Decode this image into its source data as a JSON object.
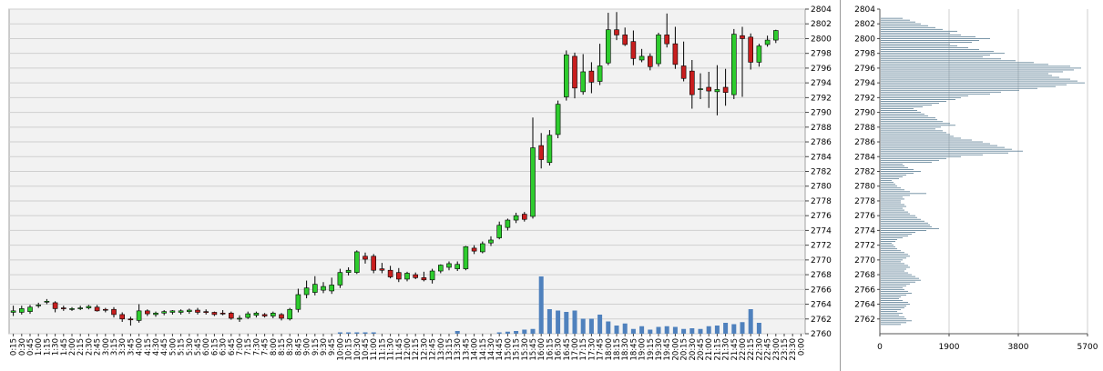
{
  "chart_data": [
    {
      "type": "candlestick",
      "title": "",
      "xlabel": "",
      "ylabel": "",
      "grid": true,
      "y_axis_position": "right",
      "ylim": [
        2760,
        2804
      ],
      "y_ticks": [
        2760,
        2762,
        2764,
        2766,
        2768,
        2770,
        2772,
        2774,
        2776,
        2778,
        2780,
        2782,
        2784,
        2786,
        2788,
        2790,
        2792,
        2794,
        2796,
        2798,
        2800,
        2802,
        2804
      ],
      "x_tick_labels": [
        "0:15",
        "0:30",
        "0:45",
        "1:00",
        "1:15",
        "1:30",
        "1:45",
        "2:00",
        "2:15",
        "2:30",
        "2:45",
        "3:00",
        "3:15",
        "3:30",
        "3:45",
        "4:00",
        "4:15",
        "4:30",
        "4:45",
        "5:00",
        "5:15",
        "5:30",
        "5:45",
        "6:00",
        "6:15",
        "6:30",
        "6:45",
        "7:00",
        "7:15",
        "7:30",
        "7:45",
        "8:00",
        "8:15",
        "8:30",
        "8:45",
        "9:00",
        "9:15",
        "9:30",
        "9:45",
        "10:00",
        "10:15",
        "10:30",
        "10:45",
        "11:00",
        "11:15",
        "11:30",
        "11:45",
        "12:00",
        "12:15",
        "12:30",
        "12:45",
        "13:00",
        "13:15",
        "13:30",
        "13:45",
        "14:00",
        "14:15",
        "14:30",
        "14:45",
        "15:00",
        "15:15",
        "15:30",
        "15:45",
        "16:00",
        "16:15",
        "16:30",
        "16:45",
        "17:00",
        "17:15",
        "17:30",
        "17:45",
        "18:00",
        "18:15",
        "18:30",
        "18:45",
        "19:00",
        "19:15",
        "19:30",
        "19:45",
        "20:00",
        "20:15",
        "20:30",
        "20:45",
        "21:00",
        "21:15",
        "21:30",
        "21:45",
        "22:00",
        "22:15",
        "22:30",
        "22:45",
        "23:00",
        "23:15",
        "23:30",
        "0:00"
      ],
      "colors": {
        "up": "#2ecc2e",
        "down": "#c81e1e",
        "volume": "#4f81bd",
        "grid": "#cfcfcf",
        "plot_bg": "#f2f2f2"
      },
      "candles": [
        {
          "o": 2762.9,
          "h": 2763.8,
          "l": 2762.4,
          "c": 2763.1
        },
        {
          "o": 2762.9,
          "h": 2763.8,
          "l": 2762.6,
          "c": 2763.4
        },
        {
          "o": 2763.0,
          "h": 2763.9,
          "l": 2762.7,
          "c": 2763.6
        },
        {
          "o": 2763.8,
          "h": 2764.2,
          "l": 2763.5,
          "c": 2763.9
        },
        {
          "o": 2764.3,
          "h": 2764.7,
          "l": 2764.0,
          "c": 2764.4
        },
        {
          "o": 2764.2,
          "h": 2764.4,
          "l": 2762.9,
          "c": 2763.4
        },
        {
          "o": 2763.5,
          "h": 2763.8,
          "l": 2763.1,
          "c": 2763.4
        },
        {
          "o": 2763.3,
          "h": 2763.6,
          "l": 2763.1,
          "c": 2763.4
        },
        {
          "o": 2763.4,
          "h": 2763.8,
          "l": 2763.2,
          "c": 2763.5
        },
        {
          "o": 2763.5,
          "h": 2763.9,
          "l": 2763.3,
          "c": 2763.7
        },
        {
          "o": 2763.6,
          "h": 2763.9,
          "l": 2763.0,
          "c": 2763.1
        },
        {
          "o": 2763.3,
          "h": 2763.5,
          "l": 2762.9,
          "c": 2763.2
        },
        {
          "o": 2763.3,
          "h": 2763.6,
          "l": 2762.2,
          "c": 2762.6
        },
        {
          "o": 2762.6,
          "h": 2762.9,
          "l": 2761.6,
          "c": 2762.0
        },
        {
          "o": 2762.0,
          "h": 2762.3,
          "l": 2761.1,
          "c": 2761.9
        },
        {
          "o": 2761.8,
          "h": 2764.0,
          "l": 2761.5,
          "c": 2763.1
        },
        {
          "o": 2763.1,
          "h": 2763.3,
          "l": 2762.4,
          "c": 2762.7
        },
        {
          "o": 2762.6,
          "h": 2763.0,
          "l": 2762.3,
          "c": 2762.8
        },
        {
          "o": 2762.8,
          "h": 2763.2,
          "l": 2762.5,
          "c": 2763.0
        },
        {
          "o": 2762.9,
          "h": 2763.2,
          "l": 2762.6,
          "c": 2763.1
        },
        {
          "o": 2762.9,
          "h": 2763.3,
          "l": 2762.6,
          "c": 2763.1
        },
        {
          "o": 2763.0,
          "h": 2763.4,
          "l": 2762.7,
          "c": 2763.2
        },
        {
          "o": 2763.2,
          "h": 2763.5,
          "l": 2762.6,
          "c": 2762.9
        },
        {
          "o": 2763.0,
          "h": 2763.3,
          "l": 2762.6,
          "c": 2762.9
        },
        {
          "o": 2762.9,
          "h": 2763.0,
          "l": 2762.4,
          "c": 2762.6
        },
        {
          "o": 2762.8,
          "h": 2763.2,
          "l": 2762.5,
          "c": 2762.7
        },
        {
          "o": 2762.8,
          "h": 2763.0,
          "l": 2761.9,
          "c": 2762.1
        },
        {
          "o": 2762.0,
          "h": 2762.5,
          "l": 2761.6,
          "c": 2762.1
        },
        {
          "o": 2762.2,
          "h": 2763.0,
          "l": 2762.0,
          "c": 2762.7
        },
        {
          "o": 2762.5,
          "h": 2763.0,
          "l": 2762.2,
          "c": 2762.8
        },
        {
          "o": 2762.6,
          "h": 2762.8,
          "l": 2762.2,
          "c": 2762.4
        },
        {
          "o": 2762.4,
          "h": 2763.0,
          "l": 2762.1,
          "c": 2762.8
        },
        {
          "o": 2762.6,
          "h": 2762.8,
          "l": 2761.8,
          "c": 2762.1
        },
        {
          "o": 2762.0,
          "h": 2763.5,
          "l": 2761.8,
          "c": 2763.3
        },
        {
          "o": 2763.3,
          "h": 2766.1,
          "l": 2762.9,
          "c": 2765.3
        },
        {
          "o": 2765.3,
          "h": 2767.2,
          "l": 2764.8,
          "c": 2766.2
        },
        {
          "o": 2765.6,
          "h": 2767.8,
          "l": 2765.2,
          "c": 2766.7
        },
        {
          "o": 2765.9,
          "h": 2767.0,
          "l": 2765.5,
          "c": 2766.4
        },
        {
          "o": 2765.8,
          "h": 2767.6,
          "l": 2765.4,
          "c": 2766.6
        },
        {
          "o": 2766.6,
          "h": 2768.8,
          "l": 2766.2,
          "c": 2768.3
        },
        {
          "o": 2768.3,
          "h": 2769.0,
          "l": 2767.9,
          "c": 2768.6
        },
        {
          "o": 2768.3,
          "h": 2771.3,
          "l": 2768.1,
          "c": 2771.1
        },
        {
          "o": 2770.5,
          "h": 2771.0,
          "l": 2769.5,
          "c": 2770.1
        },
        {
          "o": 2770.5,
          "h": 2770.8,
          "l": 2768.2,
          "c": 2768.6
        },
        {
          "o": 2768.8,
          "h": 2769.6,
          "l": 2768.2,
          "c": 2768.6
        },
        {
          "o": 2768.6,
          "h": 2769.2,
          "l": 2767.5,
          "c": 2767.7
        },
        {
          "o": 2768.3,
          "h": 2768.9,
          "l": 2767.0,
          "c": 2767.4
        },
        {
          "o": 2767.4,
          "h": 2768.4,
          "l": 2767.1,
          "c": 2768.2
        },
        {
          "o": 2768.0,
          "h": 2768.3,
          "l": 2767.4,
          "c": 2767.6
        },
        {
          "o": 2767.6,
          "h": 2768.4,
          "l": 2767.1,
          "c": 2767.3
        },
        {
          "o": 2767.3,
          "h": 2768.8,
          "l": 2766.8,
          "c": 2768.5
        },
        {
          "o": 2768.5,
          "h": 2769.4,
          "l": 2768.2,
          "c": 2769.3
        },
        {
          "o": 2769.0,
          "h": 2769.8,
          "l": 2768.6,
          "c": 2769.5
        },
        {
          "o": 2768.8,
          "h": 2769.8,
          "l": 2768.5,
          "c": 2769.4
        },
        {
          "o": 2768.8,
          "h": 2771.9,
          "l": 2768.6,
          "c": 2771.8
        },
        {
          "o": 2771.6,
          "h": 2772.0,
          "l": 2770.8,
          "c": 2771.2
        },
        {
          "o": 2771.1,
          "h": 2772.5,
          "l": 2770.9,
          "c": 2772.2
        },
        {
          "o": 2772.3,
          "h": 2773.2,
          "l": 2771.9,
          "c": 2772.7
        },
        {
          "o": 2773.0,
          "h": 2775.2,
          "l": 2772.8,
          "c": 2774.7
        },
        {
          "o": 2774.4,
          "h": 2775.6,
          "l": 2774.0,
          "c": 2775.4
        },
        {
          "o": 2775.4,
          "h": 2776.4,
          "l": 2775.0,
          "c": 2776.0
        },
        {
          "o": 2776.2,
          "h": 2776.5,
          "l": 2775.2,
          "c": 2775.5
        },
        {
          "o": 2775.9,
          "h": 2789.3,
          "l": 2775.6,
          "c": 2785.2
        },
        {
          "o": 2785.5,
          "h": 2787.2,
          "l": 2782.4,
          "c": 2783.6
        },
        {
          "o": 2783.2,
          "h": 2787.6,
          "l": 2782.8,
          "c": 2786.9
        },
        {
          "o": 2787.0,
          "h": 2791.6,
          "l": 2786.5,
          "c": 2791.1
        },
        {
          "o": 2792.1,
          "h": 2798.4,
          "l": 2791.6,
          "c": 2797.8
        },
        {
          "o": 2797.6,
          "h": 2798.1,
          "l": 2791.9,
          "c": 2793.3
        },
        {
          "o": 2792.8,
          "h": 2797.9,
          "l": 2792.4,
          "c": 2795.5
        },
        {
          "o": 2795.6,
          "h": 2796.8,
          "l": 2792.6,
          "c": 2794.1
        },
        {
          "o": 2794.2,
          "h": 2799.3,
          "l": 2793.7,
          "c": 2796.3
        },
        {
          "o": 2796.7,
          "h": 2803.5,
          "l": 2796.4,
          "c": 2801.2
        },
        {
          "o": 2801.2,
          "h": 2803.6,
          "l": 2799.8,
          "c": 2800.5
        },
        {
          "o": 2800.5,
          "h": 2801.5,
          "l": 2799.0,
          "c": 2799.2
        },
        {
          "o": 2799.6,
          "h": 2801.1,
          "l": 2796.4,
          "c": 2797.3
        },
        {
          "o": 2797.1,
          "h": 2798.6,
          "l": 2796.8,
          "c": 2797.6
        },
        {
          "o": 2797.6,
          "h": 2798.0,
          "l": 2795.7,
          "c": 2796.2
        },
        {
          "o": 2796.6,
          "h": 2800.8,
          "l": 2796.2,
          "c": 2800.5
        },
        {
          "o": 2800.5,
          "h": 2803.4,
          "l": 2798.8,
          "c": 2799.3
        },
        {
          "o": 2799.3,
          "h": 2801.6,
          "l": 2795.9,
          "c": 2796.5
        },
        {
          "o": 2796.3,
          "h": 2799.6,
          "l": 2794.2,
          "c": 2794.6
        },
        {
          "o": 2795.6,
          "h": 2797.1,
          "l": 2790.5,
          "c": 2792.4
        },
        {
          "o": 2793.2,
          "h": 2795.3,
          "l": 2791.8,
          "c": 2793.2
        },
        {
          "o": 2793.4,
          "h": 2795.5,
          "l": 2790.6,
          "c": 2792.9
        },
        {
          "o": 2792.8,
          "h": 2796.4,
          "l": 2789.6,
          "c": 2793.1
        },
        {
          "o": 2793.4,
          "h": 2795.9,
          "l": 2790.9,
          "c": 2792.7
        },
        {
          "o": 2792.4,
          "h": 2801.3,
          "l": 2791.8,
          "c": 2800.6
        },
        {
          "o": 2800.4,
          "h": 2801.6,
          "l": 2792.1,
          "c": 2800.0
        },
        {
          "o": 2800.2,
          "h": 2800.7,
          "l": 2795.8,
          "c": 2796.8
        },
        {
          "o": 2796.8,
          "h": 2799.3,
          "l": 2796.2,
          "c": 2799.0
        },
        {
          "o": 2799.2,
          "h": 2800.4,
          "l": 2798.9,
          "c": 2799.8
        },
        {
          "o": 2799.8,
          "h": 2801.2,
          "l": 2799.4,
          "c": 2801.1
        }
      ],
      "volume": [
        0,
        0,
        0,
        0,
        0,
        0,
        0,
        0,
        0,
        0,
        0,
        0,
        0,
        0,
        0,
        0,
        0,
        0,
        0,
        0,
        0,
        0,
        0,
        0,
        0,
        0,
        0,
        0,
        0,
        0,
        0,
        0,
        0,
        0,
        0,
        0,
        0,
        0,
        0,
        0.1,
        0.1,
        0.1,
        0.1,
        0.1,
        0,
        0,
        0,
        0,
        0,
        0,
        0,
        0,
        0,
        0.2,
        0,
        0,
        0,
        0,
        0.1,
        0.15,
        0.2,
        0.3,
        0.35,
        4.2,
        1.8,
        1.7,
        1.6,
        1.7,
        1.1,
        1.1,
        1.4,
        0.9,
        0.6,
        0.75,
        0.35,
        0.55,
        0.3,
        0.5,
        0.55,
        0.5,
        0.35,
        0.4,
        0.35,
        0.55,
        0.6,
        0.8,
        0.7,
        0.85,
        1.8,
        0.8,
        0,
        0,
        0
      ]
    },
    {
      "type": "bar",
      "orientation": "horizontal",
      "title": "",
      "x_ticks": [
        0,
        1900,
        3800,
        5700
      ],
      "xlim": [
        0,
        5700
      ],
      "ylim": [
        2760,
        2804
      ],
      "y_ticks": [
        2762,
        2764,
        2766,
        2768,
        2770,
        2772,
        2774,
        2776,
        2778,
        2780,
        2782,
        2784,
        2786,
        2788,
        2790,
        2792,
        2794,
        2796,
        2798,
        2800,
        2802,
        2804
      ],
      "colors": {
        "bar": "#5a7d93",
        "grid": "#cfcfcf"
      },
      "levels": [
        2761.25,
        2761.5,
        2761.75,
        2762.0,
        2762.25,
        2762.5,
        2762.75,
        2763.0,
        2763.25,
        2763.5,
        2763.75,
        2764.0,
        2764.25,
        2764.5,
        2764.75,
        2765.0,
        2765.25,
        2765.5,
        2765.75,
        2766.0,
        2766.25,
        2766.5,
        2766.75,
        2767.0,
        2767.25,
        2767.5,
        2767.75,
        2768.0,
        2768.25,
        2768.5,
        2768.75,
        2769.0,
        2769.25,
        2769.5,
        2769.75,
        2770.0,
        2770.25,
        2770.5,
        2770.75,
        2771.0,
        2771.25,
        2771.5,
        2771.75,
        2772.0,
        2772.25,
        2772.5,
        2772.75,
        2773.0,
        2773.25,
        2773.5,
        2773.75,
        2774.0,
        2774.25,
        2774.5,
        2774.75,
        2775.0,
        2775.25,
        2775.5,
        2775.75,
        2776.0,
        2776.25,
        2776.5,
        2776.75,
        2777.0,
        2777.25,
        2777.5,
        2777.75,
        2778.0,
        2778.25,
        2778.5,
        2778.75,
        2779.0,
        2779.25,
        2779.5,
        2779.75,
        2780.0,
        2780.25,
        2780.5,
        2780.75,
        2781.0,
        2781.25,
        2781.5,
        2781.75,
        2782.0,
        2782.25,
        2782.5,
        2782.75,
        2783.0,
        2783.25,
        2783.5,
        2783.75,
        2784.0,
        2784.25,
        2784.5,
        2784.75,
        2785.0,
        2785.25,
        2785.5,
        2785.75,
        2786.0,
        2786.25,
        2786.5,
        2786.75,
        2787.0,
        2787.25,
        2787.5,
        2787.75,
        2788.0,
        2788.25,
        2788.5,
        2788.75,
        2789.0,
        2789.25,
        2789.5,
        2789.75,
        2790.0,
        2790.25,
        2790.5,
        2790.75,
        2791.0,
        2791.25,
        2791.5,
        2791.75,
        2792.0,
        2792.25,
        2792.5,
        2792.75,
        2793.0,
        2793.25,
        2793.5,
        2793.75,
        2794.0,
        2794.25,
        2794.5,
        2794.75,
        2795.0,
        2795.25,
        2795.5,
        2795.75,
        2796.0,
        2796.25,
        2796.5,
        2796.75,
        2797.0,
        2797.25,
        2797.5,
        2797.75,
        2798.0,
        2798.25,
        2798.5,
        2798.75,
        2799.0,
        2799.25,
        2799.5,
        2799.75,
        2800.0,
        2800.25,
        2800.5,
        2800.75,
        2801.0,
        2801.25,
        2801.5,
        2801.75,
        2802.0,
        2802.25,
        2802.5,
        2802.75,
        2803.0,
        2803.25,
        2803.5,
        2803.75
      ],
      "values": [
        550,
        700,
        850,
        700,
        650,
        500,
        600,
        450,
        550,
        650,
        700,
        800,
        750,
        600,
        500,
        550,
        700,
        850,
        750,
        650,
        600,
        700,
        800,
        950,
        1100,
        1050,
        950,
        850,
        750,
        650,
        700,
        800,
        750,
        650,
        550,
        600,
        700,
        800,
        750,
        650,
        550,
        450,
        400,
        350,
        300,
        400,
        450,
        600,
        750,
        850,
        950,
        1250,
        1600,
        1400,
        1350,
        1300,
        1200,
        1100,
        1000,
        950,
        800,
        750,
        650,
        600,
        700,
        650,
        550,
        550,
        650,
        600,
        800,
        1250,
        800,
        650,
        550,
        450,
        400,
        350,
        300,
        500,
        600,
        700,
        900,
        1100,
        900,
        750,
        650,
        600,
        1400,
        1600,
        1800,
        2200,
        2800,
        3500,
        3900,
        3600,
        3400,
        3200,
        3000,
        2800,
        2500,
        2200,
        2000,
        1900,
        1800,
        1700,
        1500,
        1650,
        2050,
        1900,
        1700,
        1550,
        1500,
        1300,
        1200,
        1100,
        1000,
        900,
        1150,
        1400,
        1600,
        1800,
        2050,
        2200,
        2400,
        3000,
        3300,
        3800,
        4300,
        4800,
        5100,
        5600,
        5400,
        5200,
        4900,
        4700,
        4600,
        5000,
        5300,
        5500,
        5200,
        4600,
        4200,
        3700,
        3300,
        2800,
        3000,
        3400,
        3100,
        2700,
        2400,
        2100,
        1900,
        2500,
        2700,
        3000,
        2600,
        2200,
        1900,
        2100,
        1700,
        1500,
        1300,
        1100,
        950,
        800,
        600
      ]
    }
  ]
}
